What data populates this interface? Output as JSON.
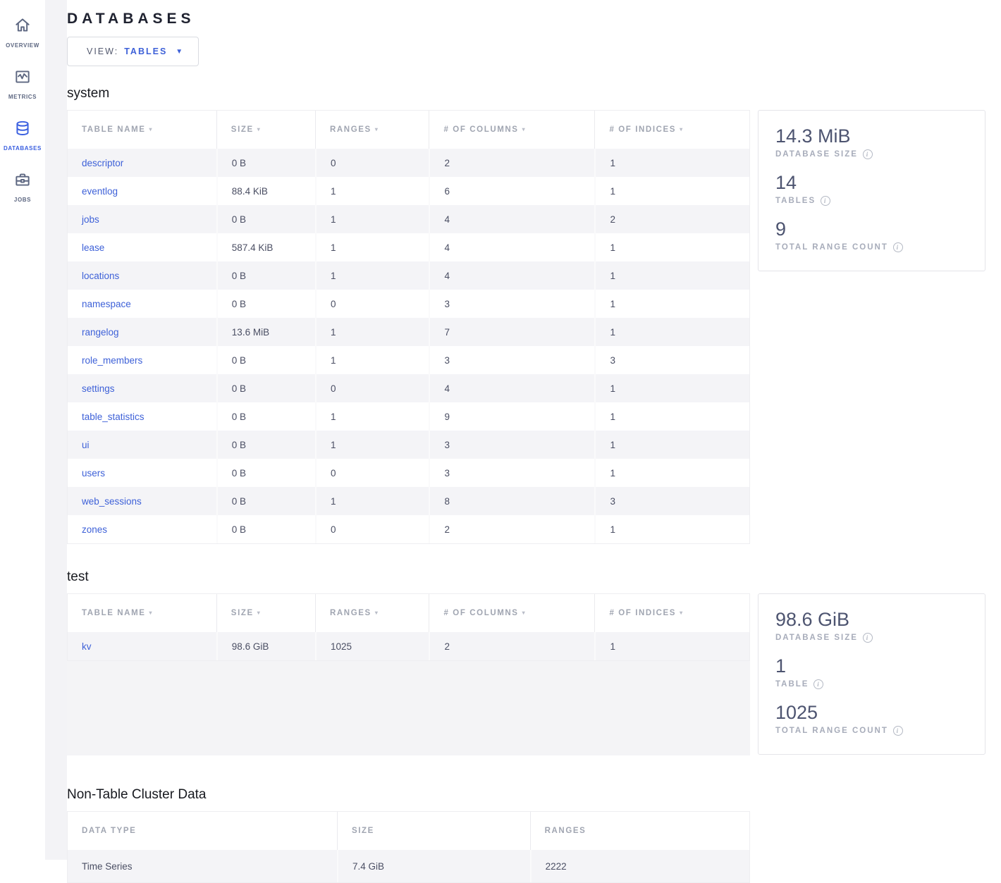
{
  "colors": {
    "accent": "#3a5fe0",
    "link": "#3e61d8"
  },
  "sidebar": {
    "items": [
      {
        "label": "OVERVIEW",
        "icon": "home-icon",
        "active": false
      },
      {
        "label": "METRICS",
        "icon": "metrics-icon",
        "active": false
      },
      {
        "label": "DATABASES",
        "icon": "databases-icon",
        "active": true
      },
      {
        "label": "JOBS",
        "icon": "jobs-icon",
        "active": false
      }
    ]
  },
  "header": {
    "title": "DATABASES"
  },
  "view_selector": {
    "label": "VIEW:",
    "value": "TABLES",
    "caret_icon": "chevron-down-icon"
  },
  "table_columns": [
    {
      "label": "TABLE NAME",
      "sortable": true
    },
    {
      "label": "SIZE",
      "sortable": true
    },
    {
      "label": "RANGES",
      "sortable": true
    },
    {
      "label": "# OF COLUMNS",
      "sortable": true
    },
    {
      "label": "# OF INDICES",
      "sortable": true
    }
  ],
  "sections": [
    {
      "name": "system",
      "rows": [
        [
          "descriptor",
          "0 B",
          "0",
          "2",
          "1"
        ],
        [
          "eventlog",
          "88.4 KiB",
          "1",
          "6",
          "1"
        ],
        [
          "jobs",
          "0 B",
          "1",
          "4",
          "2"
        ],
        [
          "lease",
          "587.4 KiB",
          "1",
          "4",
          "1"
        ],
        [
          "locations",
          "0 B",
          "1",
          "4",
          "1"
        ],
        [
          "namespace",
          "0 B",
          "0",
          "3",
          "1"
        ],
        [
          "rangelog",
          "13.6 MiB",
          "1",
          "7",
          "1"
        ],
        [
          "role_members",
          "0 B",
          "1",
          "3",
          "3"
        ],
        [
          "settings",
          "0 B",
          "0",
          "4",
          "1"
        ],
        [
          "table_statistics",
          "0 B",
          "1",
          "9",
          "1"
        ],
        [
          "ui",
          "0 B",
          "1",
          "3",
          "1"
        ],
        [
          "users",
          "0 B",
          "0",
          "3",
          "1"
        ],
        [
          "web_sessions",
          "0 B",
          "1",
          "8",
          "3"
        ],
        [
          "zones",
          "0 B",
          "0",
          "2",
          "1"
        ]
      ],
      "summary": {
        "stats": [
          {
            "value": "14.3 MiB",
            "label": "DATABASE SIZE",
            "info_icon": "info-icon"
          },
          {
            "value": "14",
            "label": "TABLES",
            "info_icon": "info-icon"
          },
          {
            "value": "9",
            "label": "TOTAL RANGE COUNT",
            "info_icon": "info-icon"
          }
        ]
      }
    },
    {
      "name": "test",
      "rows": [
        [
          "kv",
          "98.6 GiB",
          "1025",
          "2",
          "1"
        ]
      ],
      "summary": {
        "stats": [
          {
            "value": "98.6 GiB",
            "label": "DATABASE SIZE",
            "info_icon": "info-icon"
          },
          {
            "value": "1",
            "label": "TABLE",
            "info_icon": "info-icon"
          },
          {
            "value": "1025",
            "label": "TOTAL RANGE COUNT",
            "info_icon": "info-icon"
          }
        ]
      }
    }
  ],
  "non_table": {
    "name": "Non-Table Cluster Data",
    "columns": [
      {
        "label": "DATA TYPE",
        "sortable": false
      },
      {
        "label": "SIZE",
        "sortable": false
      },
      {
        "label": "RANGES",
        "sortable": false
      }
    ],
    "rows": [
      [
        "Time Series",
        "7.4 GiB",
        "2222"
      ]
    ]
  }
}
